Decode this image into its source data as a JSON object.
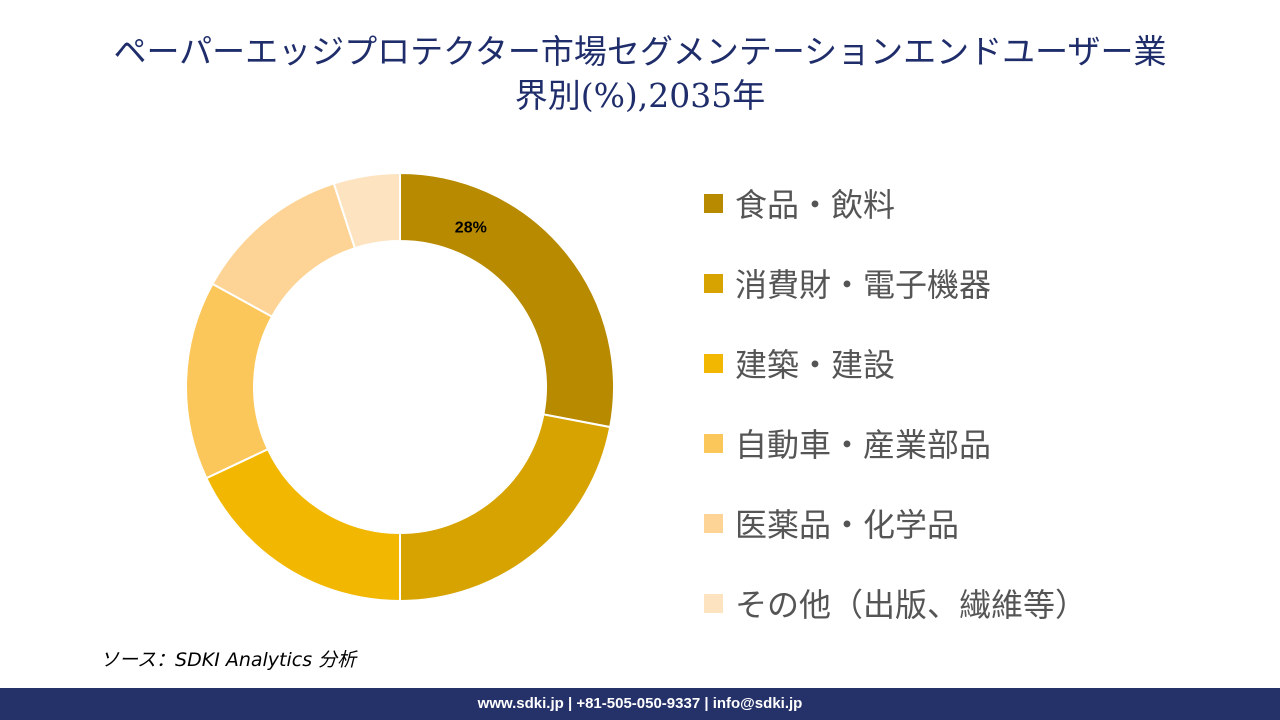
{
  "title_line1": "ペーパーエッジプロテクター市場セグメンテーションエンドユーザー業",
  "title_line2": "界別(%),2035年",
  "chart_data": {
    "type": "pie",
    "variant": "donut",
    "categories": [
      "食品・飲料",
      "消費財・電子機器",
      "建築・建設",
      "自動車・産業部品",
      "医薬品・化学品",
      "その他（出版、繊維等）"
    ],
    "values": [
      28,
      22,
      18,
      15,
      12,
      5
    ],
    "colors": [
      "#B88A00",
      "#D6A300",
      "#F2B700",
      "#FCC75A",
      "#FDD495",
      "#FDE3C0"
    ],
    "data_labels": [
      "28%",
      "",
      "",
      "",
      "",
      ""
    ],
    "legend_position": "right"
  },
  "source": "ソース：SDKI Analytics 分析",
  "footer": "www.sdki.jp | +81-505-050-9337 | info@sdki.jp"
}
